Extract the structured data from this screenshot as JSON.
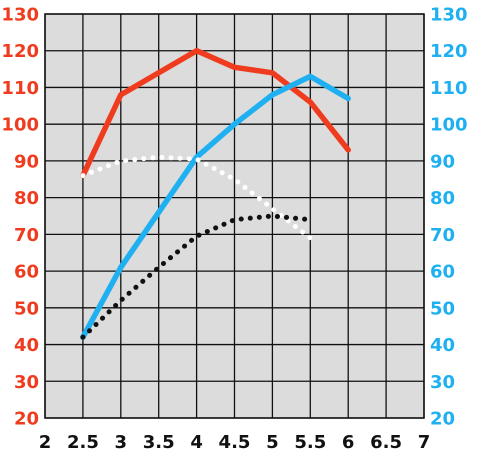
{
  "chart_data": {
    "type": "line",
    "title": "",
    "xlabel": "",
    "ylabel": "",
    "y2label": "",
    "xlim": [
      2,
      7
    ],
    "ylim": [
      20,
      130
    ],
    "y2lim": [
      20,
      130
    ],
    "x_ticks": [
      "2",
      "2.5",
      "3",
      "3.5",
      "4",
      "4.5",
      "5",
      "5.5",
      "6",
      "6.5",
      "7"
    ],
    "y_ticks_left": [
      "20",
      "30",
      "40",
      "50",
      "60",
      "70",
      "80",
      "90",
      "100",
      "110",
      "120",
      "130"
    ],
    "y_ticks_right": [
      "20",
      "30",
      "40",
      "50",
      "60",
      "70",
      "80",
      "90",
      "100",
      "110",
      "120",
      "130"
    ],
    "left_axis_color": "#f03c1e",
    "right_axis_color": "#1eb0f0",
    "grid": true,
    "plot_background": "#dcdcdc",
    "grid_color": "#111111",
    "series": [
      {
        "color": "#f03c1e",
        "style": "solid",
        "axis": "left",
        "x": [
          2.5,
          3,
          3.5,
          4,
          4.5,
          5,
          5.5,
          6
        ],
        "y": [
          86,
          108,
          114,
          120,
          115.5,
          114,
          106,
          93
        ]
      },
      {
        "color": "#1eb0f0",
        "style": "solid",
        "axis": "right",
        "x": [
          2.5,
          3,
          3.5,
          4,
          4.5,
          5,
          5.5,
          6
        ],
        "y": [
          42,
          61,
          76,
          91,
          100,
          108,
          113,
          107
        ]
      },
      {
        "color": "#ffffff",
        "style": "dotted",
        "axis": "left",
        "x": [
          2.5,
          3,
          3.5,
          4,
          4.5,
          5,
          5.5
        ],
        "y": [
          86,
          90,
          91,
          90.5,
          85,
          77,
          69
        ]
      },
      {
        "color": "#111111",
        "style": "dotted",
        "axis": "left",
        "x": [
          2.5,
          3,
          3.5,
          4,
          4.5,
          5,
          5.5
        ],
        "y": [
          42,
          52,
          61,
          69.5,
          74,
          75,
          74
        ]
      }
    ]
  }
}
